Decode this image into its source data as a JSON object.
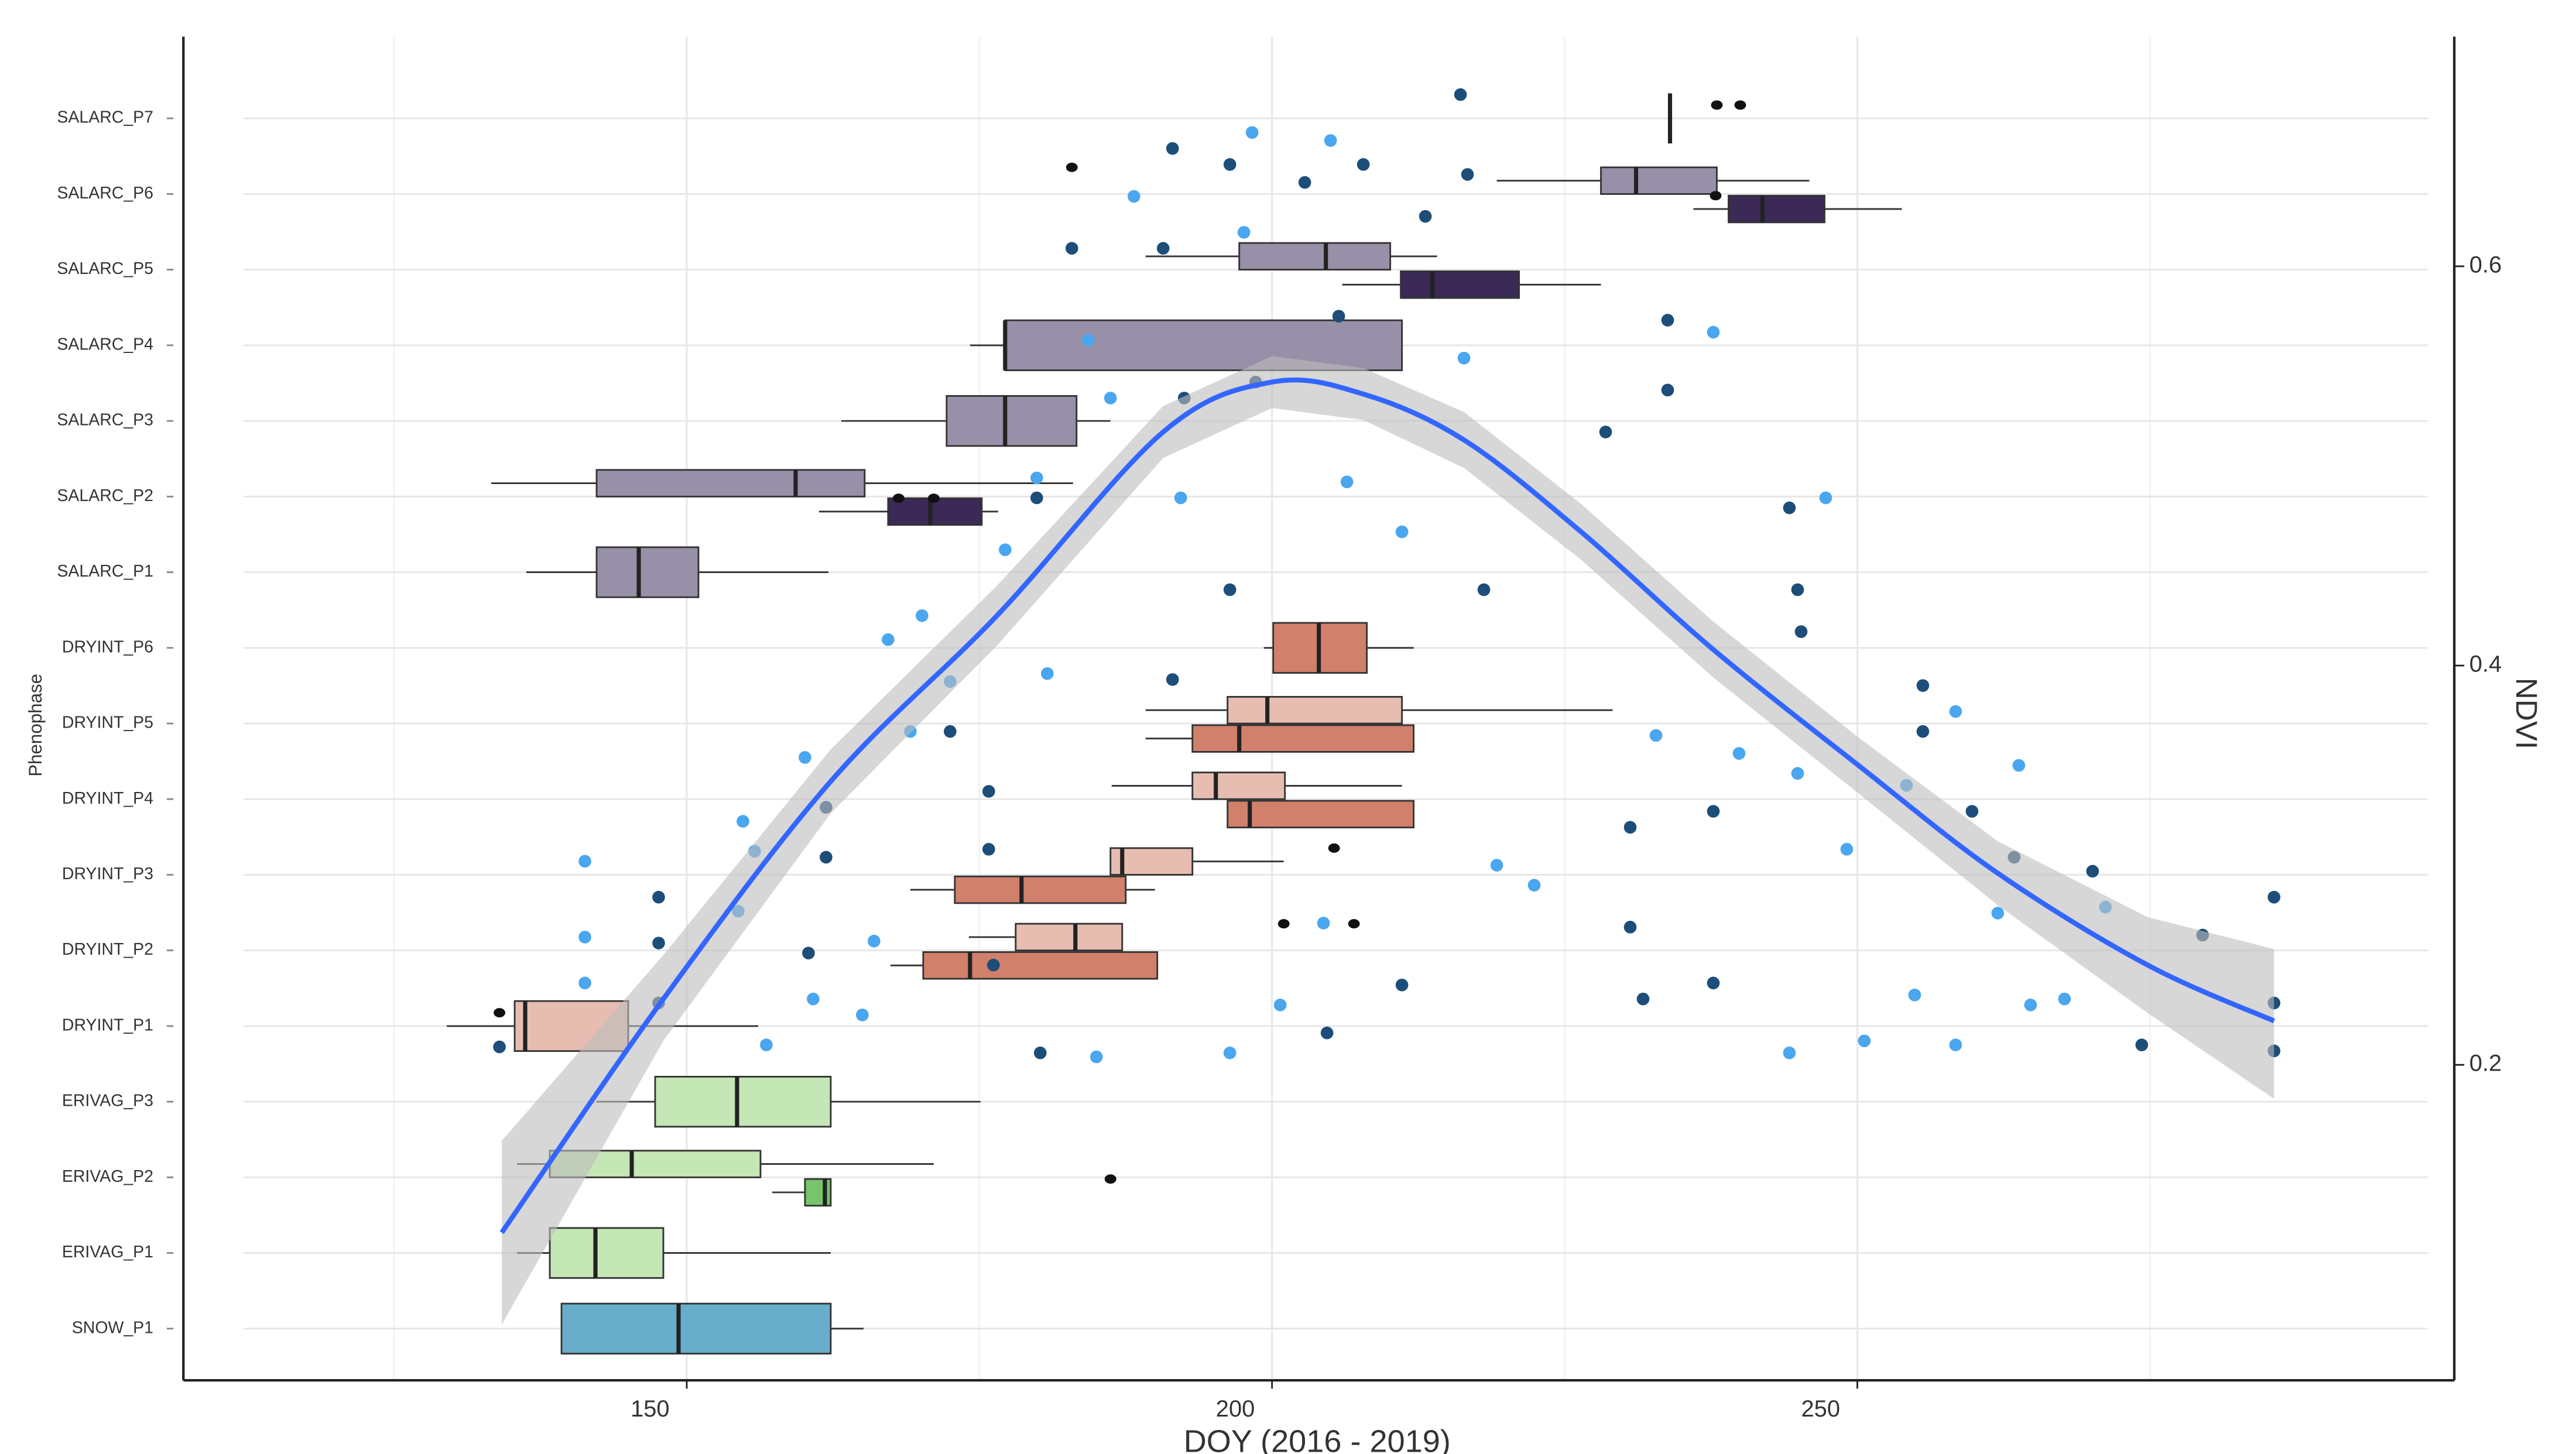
{
  "chart_data": {
    "type": "box",
    "xlabel": "DOY (2016 - 2019)",
    "ylabel": "Phenophase",
    "y2label": "NDVI",
    "categories": [
      "SNOW_P1",
      "ERIVAG_P1",
      "ERIVAG_P2",
      "ERIVAG_P3",
      "DRYINT_P1",
      "DRYINT_P2",
      "DRYINT_P3",
      "DRYINT_P4",
      "DRYINT_P5",
      "DRYINT_P6",
      "SALARC_P1",
      "SALARC_P2",
      "SALARC_P3",
      "SALARC_P4",
      "SALARC_P5",
      "SALARC_P6",
      "SALARC_P7"
    ],
    "xlim": [
      107,
      301
    ],
    "xticks": [
      150,
      200,
      250
    ],
    "xminor": [
      125,
      175,
      225,
      275
    ],
    "y2lim": [
      0.042,
      0.715
    ],
    "y2ticks": [
      0.2,
      0.4,
      0.6
    ],
    "grid": true,
    "boxes": [
      [
        {
          "color": "#68aecb",
          "stats": [
            139.3,
            139.3,
            149.3,
            162.3,
            165.1
          ],
          "outliers": []
        }
      ],
      [
        {
          "color": "#c5e6b5",
          "stats": [
            135.5,
            138.3,
            142.2,
            148.0,
            162.3
          ],
          "outliers": []
        }
      ],
      [
        {
          "color": "#c5e6b5",
          "stats": [
            135.5,
            138.3,
            145.3,
            156.3,
            171.1
          ],
          "outliers": []
        },
        {
          "color": "#78c46a",
          "stats": [
            157.3,
            160.1,
            161.8,
            162.3,
            162.3
          ],
          "outliers": [
            186.2
          ]
        }
      ],
      [
        {
          "color": "#c5e6b5",
          "stats": [
            142.3,
            147.3,
            154.3,
            162.3,
            175.1
          ],
          "outliers": []
        }
      ],
      [
        {
          "color": "#e7bdb2",
          "stats": [
            129.5,
            135.3,
            136.2,
            145.0,
            156.1
          ],
          "outliers": [
            134.0
          ]
        }
      ],
      [
        {
          "color": "#e7bdb2",
          "stats": [
            174.1,
            178.1,
            183.2,
            187.2,
            187.2
          ],
          "outliers": [
            201.0,
            207.0
          ]
        },
        {
          "color": "#d1806b",
          "stats": [
            167.4,
            170.2,
            174.2,
            190.2,
            190.2
          ],
          "outliers": []
        }
      ],
      [
        {
          "color": "#e7bdb2",
          "stats": [
            186.2,
            186.2,
            187.2,
            193.2,
            201.0
          ],
          "outliers": [
            205.3
          ]
        },
        {
          "color": "#d1806b",
          "stats": [
            169.1,
            172.9,
            178.6,
            187.5,
            190.0
          ],
          "outliers": []
        }
      ],
      [
        {
          "color": "#e7bdb2",
          "stats": [
            186.3,
            193.2,
            195.2,
            201.1,
            211.1
          ],
          "outliers": []
        },
        {
          "color": "#d1806b",
          "stats": [
            196.2,
            196.2,
            198.1,
            212.1,
            212.1
          ],
          "outliers": []
        }
      ],
      [
        {
          "color": "#e7bdb2",
          "stats": [
            189.2,
            196.2,
            199.6,
            211.1,
            229.1
          ],
          "outliers": []
        },
        {
          "color": "#d1806b",
          "stats": [
            189.2,
            193.2,
            197.2,
            212.1,
            212.1
          ],
          "outliers": []
        }
      ],
      [
        {
          "color": "#d1806b",
          "stats": [
            199.3,
            200.1,
            204.0,
            208.1,
            212.1
          ],
          "outliers": []
        }
      ],
      [
        {
          "color": "#9890a8",
          "stats": [
            136.3,
            142.3,
            145.9,
            151.0,
            162.1
          ],
          "outliers": []
        }
      ],
      [
        {
          "color": "#9890a8",
          "stats": [
            133.3,
            142.3,
            159.3,
            165.2,
            183.0
          ],
          "outliers": []
        },
        {
          "color": "#3b2a55",
          "stats": [
            161.3,
            167.2,
            170.8,
            175.2,
            176.6
          ],
          "outliers": [
            168.1,
            171.1
          ]
        }
      ],
      [
        {
          "color": "#9890a8",
          "stats": [
            163.2,
            172.2,
            177.2,
            183.3,
            186.2
          ],
          "outliers": []
        }
      ],
      [
        {
          "color": "#9890a8",
          "stats": [
            174.2,
            177.2,
            177.2,
            211.1,
            211.1
          ],
          "outliers": []
        }
      ],
      [
        {
          "color": "#9890a8",
          "stats": [
            189.2,
            197.2,
            204.6,
            210.1,
            214.1
          ],
          "outliers": []
        },
        {
          "color": "#3b2a55",
          "stats": [
            206.0,
            211.0,
            213.7,
            221.1,
            228.1
          ],
          "outliers": []
        }
      ],
      [
        {
          "color": "#9890a8",
          "stats": [
            219.2,
            228.1,
            231.1,
            238.0,
            245.9
          ],
          "outliers": [
            182.9
          ]
        },
        {
          "color": "#3b2a55",
          "stats": [
            236.0,
            239.0,
            241.9,
            247.2,
            253.8
          ],
          "outliers": [
            237.9
          ]
        }
      ],
      [
        {
          "color": "#3b2a55",
          "stats": [
            234.0,
            234.0,
            234.0,
            234.0,
            234.0
          ],
          "outliers": [
            238.0,
            240.0
          ]
        }
      ]
    ],
    "scatter": [
      {
        "color": "#4aa6ef",
        "x": [
          141.3,
          141.3,
          141.3,
          154.8,
          155.8,
          154.4,
          156.8,
          160.1,
          160.8,
          165.0,
          166.0,
          167.2,
          169.1,
          170.1,
          172.5,
          177.2,
          179.9,
          180.8,
          184.3,
          185.0,
          186.2,
          188.2,
          192.2,
          197.6,
          198.3,
          196.4,
          200.7,
          204.4,
          205.0,
          206.4,
          211.1,
          216.4,
          219.2,
          222.4,
          232.8,
          237.7,
          239.9,
          247.3,
          244.2,
          244.9,
          249.1,
          250.6,
          254.2,
          254.9,
          258.4,
          258.4,
          262.0,
          263.8,
          264.8,
          267.7,
          271.2
        ],
        "y": [
          0.302,
          0.264,
          0.241,
          0.322,
          0.307,
          0.277,
          0.21,
          0.354,
          0.233,
          0.225,
          0.262,
          0.413,
          0.367,
          0.425,
          0.392,
          0.458,
          0.494,
          0.396,
          0.563,
          0.204,
          0.534,
          0.635,
          0.484,
          0.617,
          0.667,
          0.206,
          0.23,
          0.271,
          0.663,
          0.492,
          0.467,
          0.554,
          0.3,
          0.29,
          0.365,
          0.567,
          0.356,
          0.484,
          0.206,
          0.346,
          0.308,
          0.212,
          0.34,
          0.235,
          0.21,
          0.377,
          0.276,
          0.35,
          0.23,
          0.233,
          0.279
        ]
      },
      {
        "color": "#1d4e7a",
        "x": [
          147.6,
          147.6,
          147.6,
          134.0,
          160.4,
          161.9,
          161.9,
          172.5,
          175.8,
          175.8,
          176.2,
          179.9,
          180.2,
          182.9,
          190.7,
          191.5,
          191.5,
          192.5,
          196.4,
          198.6,
          196.4,
          202.8,
          204.7,
          205.7,
          207.8,
          211.1,
          213.1,
          216.1,
          216.7,
          218.1,
          228.5,
          230.6,
          230.6,
          231.7,
          233.8,
          233.8,
          237.7,
          237.7,
          244.2,
          244.9,
          245.2,
          255.6,
          255.6,
          259.8,
          263.4,
          270.1,
          274.3,
          279.5,
          285.6,
          285.6,
          285.6
        ],
        "y": [
          0.284,
          0.261,
          0.231,
          0.209,
          0.256,
          0.329,
          0.304,
          0.367,
          0.308,
          0.337,
          0.25,
          0.484,
          0.206,
          0.609,
          0.609,
          0.659,
          0.393,
          0.534,
          0.651,
          0.542,
          0.438,
          0.642,
          0.216,
          0.575,
          0.651,
          0.24,
          0.625,
          0.686,
          0.646,
          0.438,
          0.517,
          0.319,
          0.269,
          0.233,
          0.573,
          0.538,
          0.327,
          0.241,
          0.479,
          0.438,
          0.417,
          0.39,
          0.367,
          0.327,
          0.304,
          0.297,
          0.21,
          0.265,
          0.284,
          0.231,
          0.207
        ]
      }
    ],
    "smooth": {
      "color": "#3366ff",
      "band_color": "#bdbdbd",
      "x": [
        134.2,
        148.0,
        162.3,
        176.5,
        190.7,
        200.0,
        207.8,
        216.4,
        226.4,
        237.7,
        250.1,
        262.0,
        274.8,
        285.6
      ],
      "y": [
        0.116,
        0.233,
        0.342,
        0.425,
        0.517,
        0.542,
        0.536,
        0.513,
        0.467,
        0.408,
        0.35,
        0.296,
        0.25,
        0.222
      ],
      "lower": [
        0.07,
        0.212,
        0.326,
        0.41,
        0.504,
        0.529,
        0.523,
        0.499,
        0.453,
        0.394,
        0.336,
        0.28,
        0.226,
        0.183
      ],
      "upper": [
        0.162,
        0.255,
        0.358,
        0.44,
        0.53,
        0.555,
        0.549,
        0.527,
        0.481,
        0.422,
        0.364,
        0.312,
        0.274,
        0.258
      ]
    }
  }
}
